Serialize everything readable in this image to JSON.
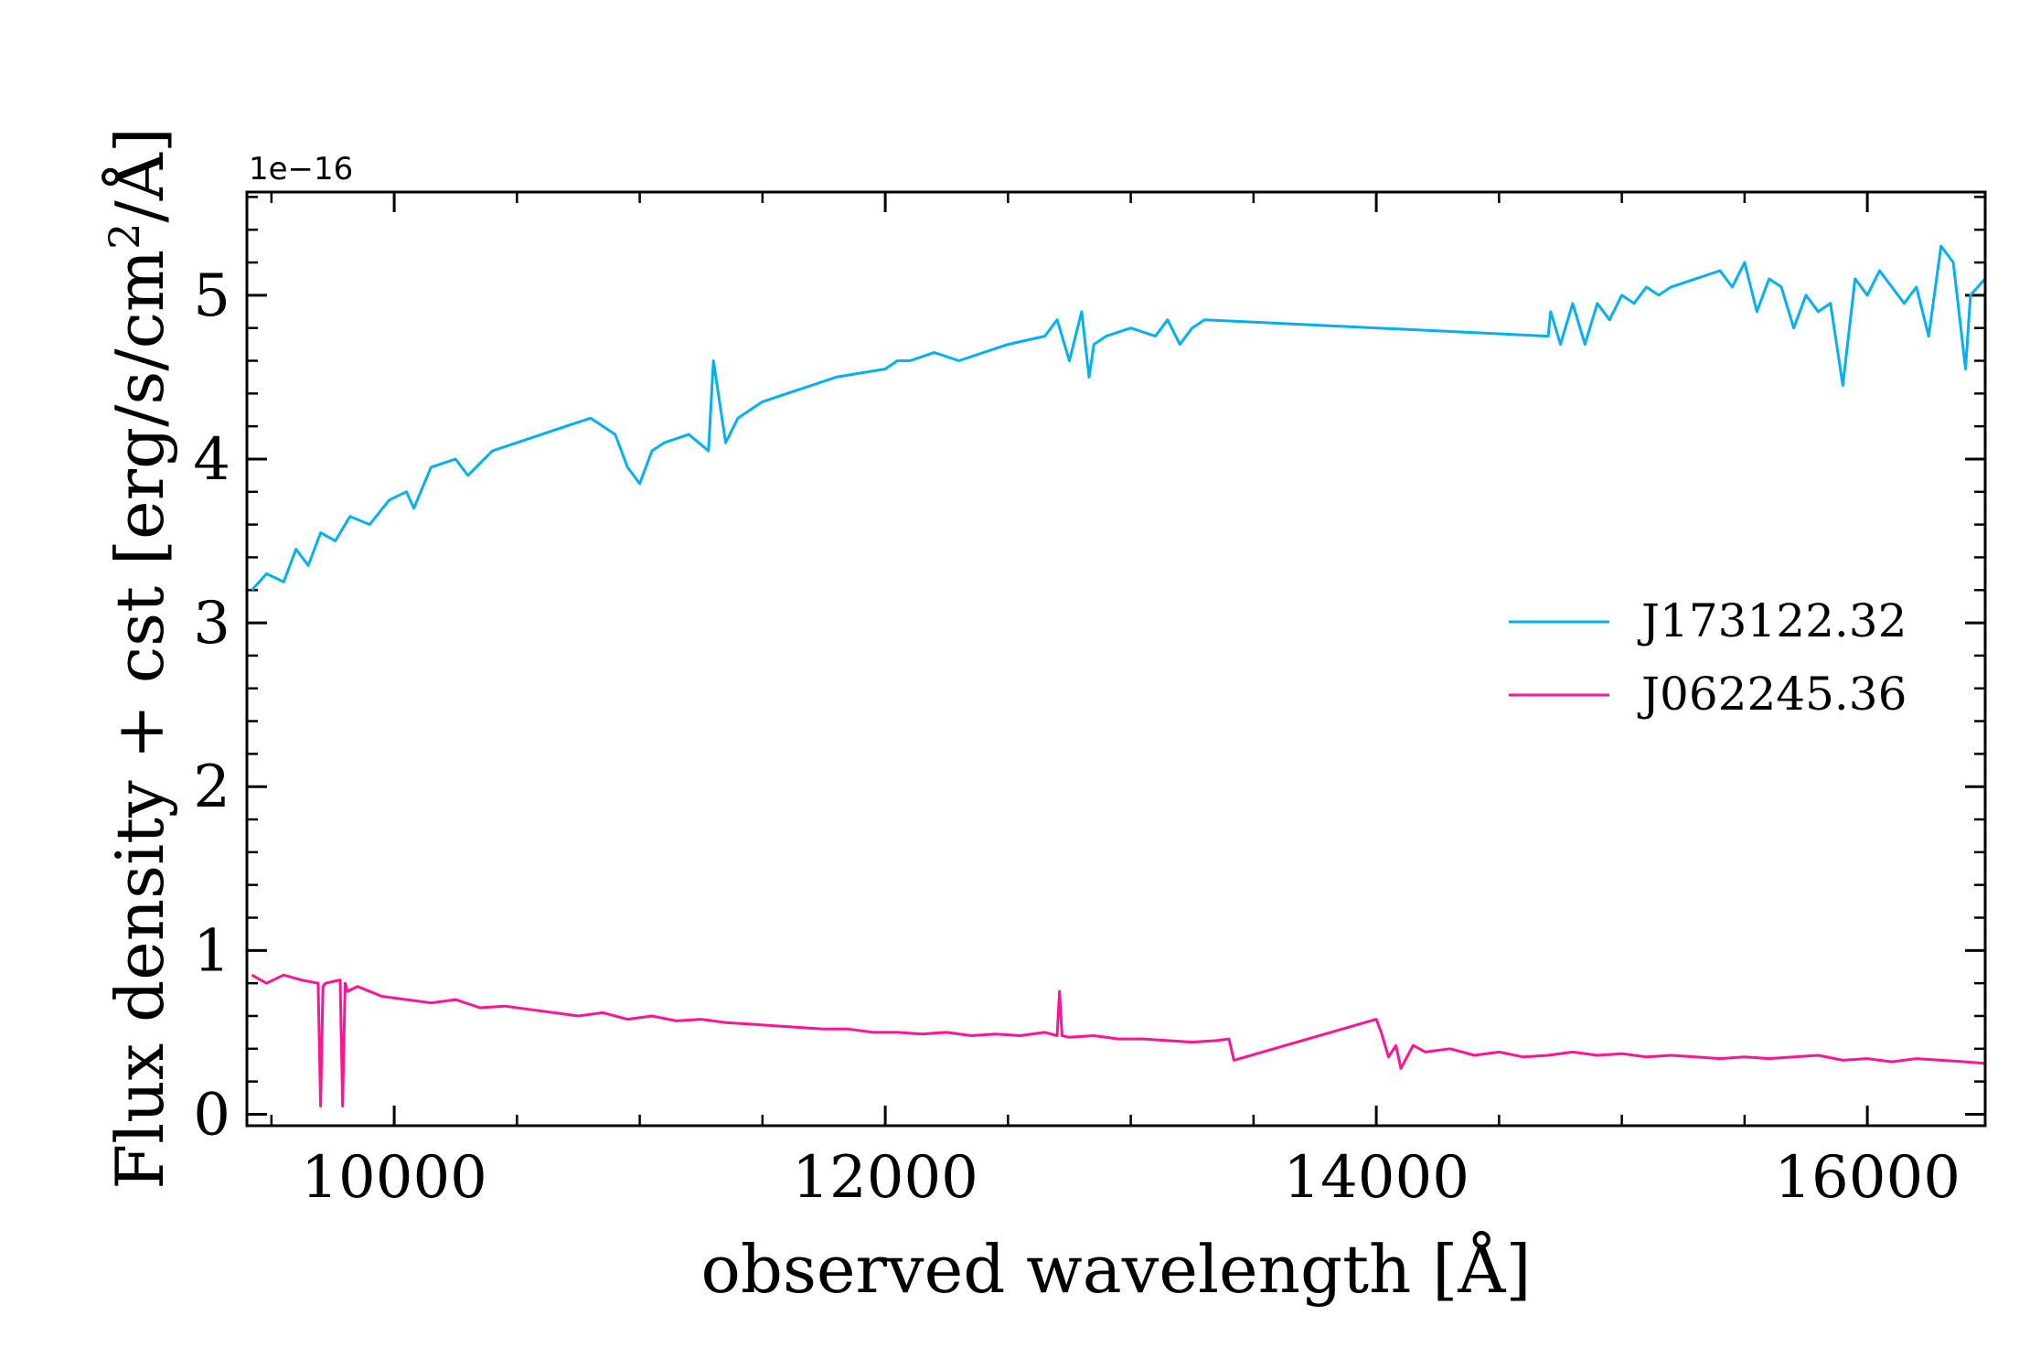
{
  "chart_data": {
    "type": "line",
    "xlabel": "observed wavelength [Å]",
    "ylabel_main": "Flux density + cst [erg/s/cm",
    "ylabel_sup": "2",
    "ylabel_tail": "/Å]",
    "offset_label": "1e−16",
    "xlim": [
      9400,
      16480
    ],
    "ylim": [
      -0.07,
      5.63
    ],
    "y_scale_exponent": -16,
    "x_ticks": [
      10000,
      12000,
      14000,
      16000
    ],
    "x_tick_labels": [
      "10000",
      "12000",
      "14000",
      "16000"
    ],
    "y_ticks": [
      0,
      1,
      2,
      3,
      4,
      5
    ],
    "y_tick_labels": [
      "0",
      "1",
      "2",
      "3",
      "4",
      "5"
    ],
    "legend_position": "center-right",
    "series": [
      {
        "name": "J173122.32",
        "color": "#00b0f0",
        "x": [
          9420,
          9480,
          9550,
          9600,
          9650,
          9700,
          9760,
          9820,
          9900,
          9980,
          10050,
          10080,
          10150,
          10250,
          10300,
          10400,
          10500,
          10600,
          10700,
          10800,
          10850,
          10900,
          10950,
          11000,
          11050,
          11100,
          11200,
          11280,
          11300,
          11350,
          11400,
          11500,
          11600,
          11700,
          11800,
          12000,
          12050,
          12100,
          12200,
          12300,
          12500,
          12650,
          12700,
          12750,
          12800,
          12830,
          12850,
          12900,
          13000,
          13100,
          13150,
          13200,
          13250,
          13300,
          14700,
          14710,
          14750,
          14800,
          14850,
          14900,
          14950,
          15000,
          15050,
          15100,
          15150,
          15200,
          15300,
          15400,
          15450,
          15500,
          15550,
          15600,
          15650,
          15700,
          15750,
          15800,
          15850,
          15900,
          15950,
          16000,
          16050,
          16100,
          16150,
          16200,
          16250,
          16300,
          16350,
          16400,
          16420,
          16450,
          16480
        ],
        "y": [
          3.2,
          3.3,
          3.25,
          3.45,
          3.35,
          3.55,
          3.5,
          3.65,
          3.6,
          3.75,
          3.8,
          3.7,
          3.95,
          4.0,
          3.9,
          4.05,
          4.1,
          4.15,
          4.2,
          4.25,
          4.2,
          4.15,
          3.95,
          3.85,
          4.05,
          4.1,
          4.15,
          4.05,
          4.6,
          4.1,
          4.25,
          4.35,
          4.4,
          4.45,
          4.5,
          4.55,
          4.6,
          4.6,
          4.65,
          4.6,
          4.7,
          4.75,
          4.85,
          4.6,
          4.9,
          4.5,
          4.7,
          4.75,
          4.8,
          4.75,
          4.85,
          4.7,
          4.8,
          4.85,
          4.75,
          4.9,
          4.7,
          4.95,
          4.7,
          4.95,
          4.85,
          5.0,
          4.95,
          5.05,
          5.0,
          5.05,
          5.1,
          5.15,
          5.05,
          5.2,
          4.9,
          5.1,
          5.05,
          4.8,
          5.0,
          4.9,
          4.95,
          4.45,
          5.1,
          5.0,
          5.15,
          5.05,
          4.95,
          5.05,
          4.75,
          5.3,
          5.2,
          4.55,
          5.0,
          5.05,
          5.1
        ]
      },
      {
        "name": "J062245.36",
        "color": "#ff1493",
        "x": [
          9420,
          9480,
          9550,
          9620,
          9690,
          9700,
          9710,
          9720,
          9780,
          9790,
          9800,
          9810,
          9850,
          9950,
          10050,
          10150,
          10250,
          10350,
          10450,
          10550,
          10650,
          10750,
          10850,
          10950,
          11050,
          11150,
          11250,
          11350,
          11450,
          11550,
          11650,
          11750,
          11850,
          11950,
          12050,
          12150,
          12250,
          12350,
          12450,
          12550,
          12650,
          12700,
          12710,
          12720,
          12750,
          12850,
          12950,
          13050,
          13150,
          13250,
          13350,
          13400,
          13420,
          14000,
          14020,
          14050,
          14080,
          14100,
          14150,
          14200,
          14300,
          14400,
          14500,
          14600,
          14700,
          14800,
          14900,
          15000,
          15100,
          15200,
          15300,
          15400,
          15500,
          15600,
          15700,
          15800,
          15900,
          16000,
          16100,
          16200,
          16300,
          16400,
          16480
        ],
        "y": [
          0.85,
          0.8,
          0.85,
          0.82,
          0.8,
          0.05,
          0.78,
          0.8,
          0.82,
          0.05,
          0.8,
          0.75,
          0.78,
          0.72,
          0.7,
          0.68,
          0.7,
          0.65,
          0.66,
          0.64,
          0.62,
          0.6,
          0.62,
          0.58,
          0.6,
          0.57,
          0.58,
          0.56,
          0.55,
          0.54,
          0.53,
          0.52,
          0.52,
          0.5,
          0.5,
          0.49,
          0.5,
          0.48,
          0.49,
          0.48,
          0.5,
          0.48,
          0.75,
          0.48,
          0.47,
          0.48,
          0.46,
          0.46,
          0.45,
          0.44,
          0.45,
          0.46,
          0.33,
          0.58,
          0.5,
          0.35,
          0.42,
          0.28,
          0.42,
          0.38,
          0.4,
          0.36,
          0.38,
          0.35,
          0.36,
          0.38,
          0.36,
          0.37,
          0.35,
          0.36,
          0.35,
          0.34,
          0.35,
          0.34,
          0.35,
          0.36,
          0.33,
          0.34,
          0.32,
          0.34,
          0.33,
          0.32,
          0.31
        ]
      }
    ]
  }
}
